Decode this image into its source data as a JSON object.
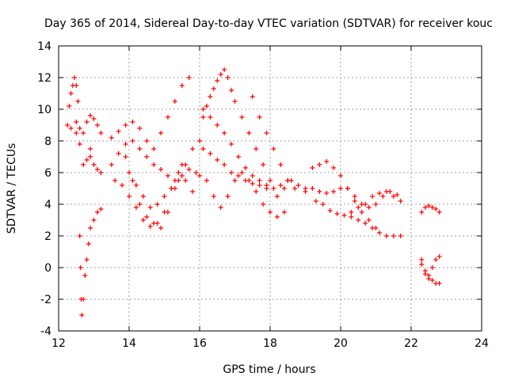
{
  "chart_data": {
    "type": "scatter",
    "title": "Day 365 of 2014, Sidereal Day-to-day VTEC variation (SDTVAR) for receiver kouc",
    "xlabel": "GPS time / hours",
    "ylabel": "SDTVAR / TECUs",
    "xlim": [
      12,
      24
    ],
    "ylim": [
      -4,
      14
    ],
    "xticks": [
      12,
      14,
      16,
      18,
      20,
      22,
      24
    ],
    "yticks": [
      -4,
      -2,
      0,
      2,
      4,
      6,
      8,
      10,
      12,
      14
    ],
    "grid": true,
    "marker": "+",
    "color": "#ff0000",
    "series": [
      {
        "name": "trace-1",
        "x": [
          12.25,
          12.35,
          12.5,
          12.6,
          12.7,
          12.8,
          12.9
        ],
        "y": [
          9.0,
          8.8,
          8.5,
          7.8,
          6.5,
          6.8,
          7.5
        ]
      },
      {
        "name": "trace-2",
        "x": [
          12.3,
          12.35,
          12.4,
          12.45,
          12.5,
          12.55
        ],
        "y": [
          10.2,
          11.0,
          11.5,
          12.0,
          11.5,
          10.5
        ]
      },
      {
        "name": "trace-3",
        "x": [
          12.6,
          12.62,
          12.64,
          12.66,
          12.7,
          12.75,
          12.8,
          12.85,
          12.9,
          13.0,
          13.1,
          13.2
        ],
        "y": [
          2.0,
          0.0,
          -2.0,
          -3.0,
          -2.0,
          -0.5,
          0.5,
          1.5,
          2.5,
          3.0,
          3.5,
          3.7
        ]
      },
      {
        "name": "trace-4",
        "x": [
          12.5,
          12.6,
          12.7,
          12.8,
          12.9,
          13.0,
          13.1,
          13.2
        ],
        "y": [
          9.2,
          8.8,
          8.5,
          9.2,
          9.6,
          9.4,
          9.0,
          8.5
        ]
      },
      {
        "name": "trace-5",
        "x": [
          12.9,
          13.0,
          13.1,
          13.2
        ],
        "y": [
          7.0,
          6.5,
          6.2,
          6.0
        ]
      },
      {
        "name": "trace-6",
        "x": [
          13.5,
          13.7,
          13.9,
          14.1,
          14.3,
          14.5,
          14.7,
          14.9,
          15.1,
          15.3,
          15.5,
          15.7,
          15.9,
          16.0
        ],
        "y": [
          6.5,
          7.2,
          7.8,
          8.0,
          7.5,
          7.0,
          6.5,
          6.2,
          5.8,
          5.5,
          5.8,
          6.2,
          6.0,
          5.8
        ]
      },
      {
        "name": "trace-7",
        "x": [
          13.6,
          13.8,
          14.0,
          14.2,
          14.4,
          14.6,
          14.8,
          15.0,
          15.2,
          15.4,
          15.6,
          15.8
        ],
        "y": [
          5.5,
          5.2,
          4.5,
          3.8,
          3.0,
          2.6,
          2.8,
          3.5,
          5.0,
          6.0,
          5.5,
          4.8
        ]
      },
      {
        "name": "trace-8",
        "x": [
          13.5,
          13.7,
          13.9,
          14.1,
          14.3,
          14.5,
          14.7,
          14.9,
          15.1,
          15.3,
          15.5,
          15.7
        ],
        "y": [
          8.2,
          8.6,
          9.0,
          9.2,
          8.8,
          8.0,
          7.5,
          8.5,
          9.5,
          10.5,
          11.5,
          12.0
        ]
      },
      {
        "name": "trace-9",
        "x": [
          13.9,
          14.1,
          14.3,
          14.5,
          14.7,
          14.9,
          15.1,
          15.3,
          15.5
        ],
        "y": [
          7.0,
          5.5,
          4.0,
          3.2,
          2.8,
          2.5,
          3.5,
          5.0,
          6.5
        ]
      },
      {
        "name": "trace-10",
        "x": [
          14.0,
          14.2,
          14.4,
          14.6,
          14.8,
          15.0,
          15.2,
          15.4,
          15.6,
          15.8,
          16.0
        ],
        "y": [
          6.0,
          5.2,
          4.5,
          3.8,
          4.0,
          4.5,
          5.0,
          5.5,
          6.5,
          7.5,
          8.0
        ]
      },
      {
        "name": "trace-11",
        "x": [
          16.1,
          16.2,
          16.3,
          16.4,
          16.5,
          16.6,
          16.7,
          16.8,
          16.9,
          17.0,
          17.2,
          17.4,
          17.6,
          17.8,
          18.0
        ],
        "y": [
          9.5,
          10.2,
          10.8,
          11.3,
          11.8,
          12.2,
          12.5,
          12.0,
          11.2,
          10.5,
          9.5,
          8.5,
          7.5,
          6.5,
          5.5
        ]
      },
      {
        "name": "trace-12",
        "x": [
          16.1,
          16.3,
          16.5,
          16.7,
          16.9,
          17.1,
          17.3,
          17.5,
          17.7,
          17.9,
          18.1,
          18.3,
          18.5
        ],
        "y": [
          7.5,
          7.2,
          6.8,
          6.5,
          6.0,
          5.8,
          5.5,
          5.3,
          5.2,
          5.0,
          5.0,
          5.2,
          5.5
        ]
      },
      {
        "name": "trace-13",
        "x": [
          16.1,
          16.3,
          16.5,
          16.7,
          16.9,
          17.1,
          17.3,
          17.5,
          17.7,
          17.9
        ],
        "y": [
          10.0,
          9.5,
          9.0,
          8.5,
          7.8,
          7.0,
          6.3,
          5.8,
          5.5,
          5.2
        ]
      },
      {
        "name": "trace-14",
        "x": [
          16.2,
          16.4,
          16.6,
          16.8,
          17.0,
          17.2,
          17.4,
          17.6,
          17.8,
          18.0,
          18.2,
          18.4
        ],
        "y": [
          5.5,
          4.5,
          3.8,
          4.5,
          5.5,
          6.0,
          5.5,
          4.8,
          4.0,
          3.5,
          3.2,
          3.5
        ]
      },
      {
        "name": "trace-15",
        "x": [
          17.5,
          17.7,
          17.9,
          18.1,
          18.3,
          18.5,
          18.7
        ],
        "y": [
          10.8,
          9.5,
          8.5,
          7.5,
          6.5,
          5.5,
          5.0
        ]
      },
      {
        "name": "trace-16",
        "x": [
          18.2,
          18.4,
          18.6,
          18.8,
          19.0
        ],
        "y": [
          4.5,
          5.0,
          5.5,
          5.2,
          4.8
        ]
      },
      {
        "name": "trace-17",
        "x": [
          19.0,
          19.2,
          19.4,
          19.6,
          19.8,
          20.0,
          20.2,
          20.4,
          20.6,
          20.8,
          21.0,
          21.2,
          21.4,
          21.6
        ],
        "y": [
          5.0,
          5.0,
          4.8,
          4.7,
          4.8,
          5.0,
          5.0,
          4.5,
          4.0,
          3.8,
          4.0,
          4.5,
          4.8,
          4.6
        ]
      },
      {
        "name": "trace-18",
        "x": [
          19.2,
          19.4,
          19.6,
          19.8,
          20.0,
          20.2,
          20.4,
          20.6,
          20.8,
          21.0
        ],
        "y": [
          6.3,
          6.5,
          6.7,
          6.3,
          5.8,
          5.0,
          4.2,
          3.5,
          3.0,
          2.5
        ]
      },
      {
        "name": "trace-19",
        "x": [
          19.3,
          19.5,
          19.7,
          19.9,
          20.1,
          20.3,
          20.5,
          20.7,
          20.9,
          21.1,
          21.3,
          21.5,
          21.7
        ],
        "y": [
          4.2,
          4.0,
          3.6,
          3.4,
          3.3,
          3.2,
          3.0,
          2.8,
          2.5,
          2.2,
          2.0,
          2.0,
          2.0
        ]
      },
      {
        "name": "trace-20",
        "x": [
          20.3,
          20.5,
          20.7,
          20.9,
          21.1,
          21.3,
          21.5,
          21.7
        ],
        "y": [
          3.5,
          3.8,
          4.0,
          4.5,
          4.7,
          4.8,
          4.5,
          4.2
        ]
      },
      {
        "name": "trace-21",
        "x": [
          22.3,
          22.4,
          22.5,
          22.6,
          22.7,
          22.8
        ],
        "y": [
          3.5,
          3.8,
          3.9,
          3.8,
          3.7,
          3.5
        ]
      },
      {
        "name": "trace-22",
        "x": [
          22.3,
          22.4,
          22.5,
          22.6,
          22.7,
          22.8
        ],
        "y": [
          0.5,
          -0.2,
          -0.5,
          0.0,
          0.5,
          0.7
        ]
      },
      {
        "name": "trace-23",
        "x": [
          22.3,
          22.4,
          22.5,
          22.6,
          22.7,
          22.8
        ],
        "y": [
          0.2,
          -0.4,
          -0.7,
          -0.8,
          -1.0,
          -1.0
        ]
      }
    ]
  }
}
